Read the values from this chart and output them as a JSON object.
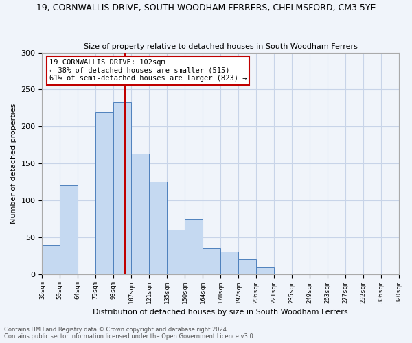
{
  "title": "19, CORNWALLIS DRIVE, SOUTH WOODHAM FERRERS, CHELMSFORD, CM3 5YE",
  "subtitle": "Size of property relative to detached houses in South Woodham Ferrers",
  "xlabel": "Distribution of detached houses by size in South Woodham Ferrers",
  "ylabel": "Number of detached properties",
  "footnote1": "Contains HM Land Registry data © Crown copyright and database right 2024.",
  "footnote2": "Contains public sector information licensed under the Open Government Licence v3.0.",
  "categories": [
    "36sqm",
    "50sqm",
    "64sqm",
    "79sqm",
    "93sqm",
    "107sqm",
    "121sqm",
    "135sqm",
    "150sqm",
    "164sqm",
    "178sqm",
    "192sqm",
    "206sqm",
    "221sqm",
    "235sqm",
    "249sqm",
    "263sqm",
    "277sqm",
    "292sqm",
    "306sqm",
    "320sqm"
  ],
  "values": [
    40,
    120,
    0,
    220,
    233,
    163,
    125,
    60,
    75,
    35,
    30,
    20,
    10,
    0,
    0,
    0,
    0,
    0,
    0,
    0
  ],
  "bar_color": "#c5d9f1",
  "bar_edge_color": "#4f81bd",
  "annotation_line1": "19 CORNWALLIS DRIVE: 102sqm",
  "annotation_line2": "← 38% of detached houses are smaller (515)",
  "annotation_line3": "61% of semi-detached houses are larger (823) →",
  "vline_color": "#c00000",
  "annotation_box_edge_color": "#c00000",
  "ylim": [
    0,
    300
  ],
  "yticks": [
    0,
    50,
    100,
    150,
    200,
    250,
    300
  ],
  "background_color": "#f0f4fa",
  "grid_color": "#c8d4e8",
  "title_fontsize": 9,
  "subtitle_fontsize": 8
}
